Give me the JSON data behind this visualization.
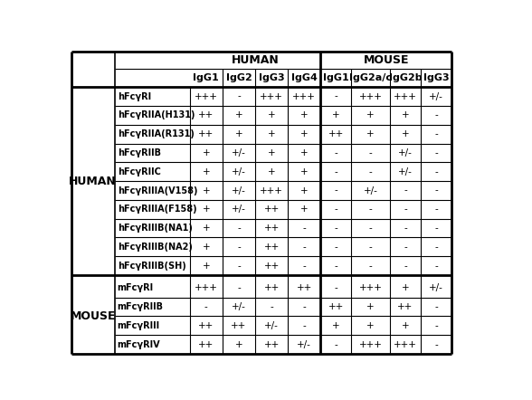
{
  "col_headers": [
    "IgG1",
    "IgG2",
    "IgG3",
    "IgG4",
    "IgG1",
    "IgG2a/c",
    "IgG2b",
    "IgG3"
  ],
  "row_groups": [
    {
      "label": "HUMAN",
      "rows": [
        [
          "hFcγRI",
          "+++",
          "-",
          "+++",
          "+++",
          "-",
          "+++",
          "+++",
          "+/-"
        ],
        [
          "hFcγRIIA(H131)",
          "++",
          "+",
          "+",
          "+",
          "+",
          "+",
          "+",
          "-"
        ],
        [
          "hFcγRIIA(R131)",
          "++",
          "+",
          "+",
          "+",
          "++",
          "+",
          "+",
          "-"
        ],
        [
          "hFcγRIIB",
          "+",
          "+/-",
          "+",
          "+",
          "-",
          "-",
          "+/-",
          "-"
        ],
        [
          "hFcγRIIC",
          "+",
          "+/-",
          "+",
          "+",
          "-",
          "-",
          "+/-",
          "-"
        ],
        [
          "hFcγRIIIA(V158)",
          "+",
          "+/-",
          "+++",
          "+",
          "-",
          "+/-",
          "-",
          "-"
        ],
        [
          "hFcγRIIIA(F158)",
          "+",
          "+/-",
          "++",
          "+",
          "-",
          "-",
          "-",
          "-"
        ],
        [
          "hFcγRIIIB(NA1)",
          "+",
          "-",
          "++",
          "-",
          "-",
          "-",
          "-",
          "-"
        ],
        [
          "hFcγRIIIB(NA2)",
          "+",
          "-",
          "++",
          "-",
          "-",
          "-",
          "-",
          "-"
        ],
        [
          "hFcγRIIIB(SH)",
          "+",
          "-",
          "++",
          "-",
          "-",
          "-",
          "-",
          "-"
        ]
      ]
    },
    {
      "label": "MOUSE",
      "rows": [
        [
          "mFcγRI",
          "+++",
          "-",
          "++",
          "++",
          "-",
          "+++",
          "+",
          "+/-"
        ],
        [
          "mFcγRIIB",
          "-",
          "+/-",
          "-",
          "-",
          "++",
          "+",
          "++",
          "-"
        ],
        [
          "mFcγRIII",
          "++",
          "++",
          "+/-",
          "-",
          "+",
          "+",
          "+",
          "-"
        ],
        [
          "mFcγRIV",
          "++",
          "+",
          "++",
          "+/-",
          "-",
          "+++",
          "+++",
          "-"
        ]
      ]
    }
  ]
}
